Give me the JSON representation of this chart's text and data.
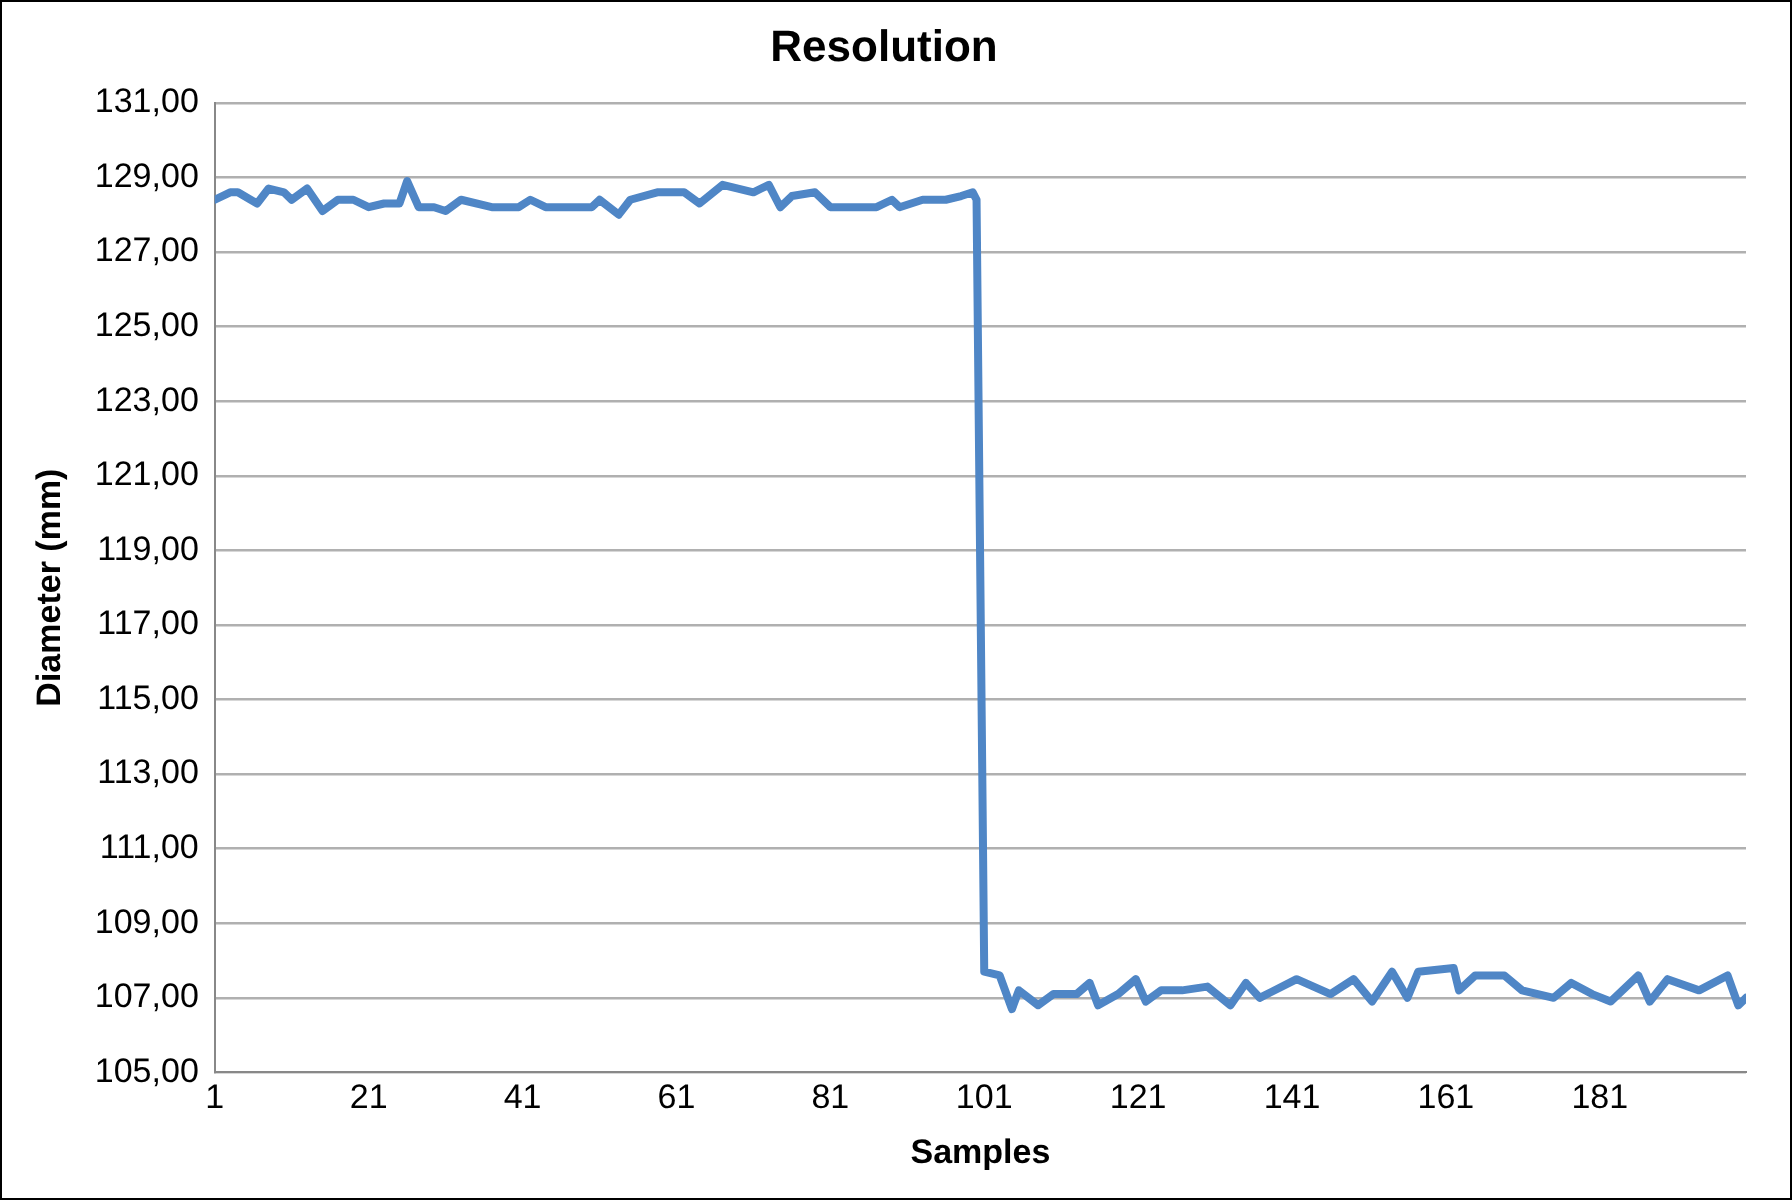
{
  "chart_data": {
    "type": "line",
    "title": "Resolution",
    "xlabel": "Samples",
    "ylabel": "Diameter (mm)",
    "xlim": [
      1,
      200
    ],
    "xticks": [
      1,
      21,
      41,
      61,
      81,
      101,
      121,
      141,
      161,
      181
    ],
    "ylim": [
      105,
      131
    ],
    "yticks": [
      {
        "value": 105,
        "label": "105,00"
      },
      {
        "value": 107,
        "label": "107,00"
      },
      {
        "value": 109,
        "label": "109,00"
      },
      {
        "value": 111,
        "label": "111,00"
      },
      {
        "value": 113,
        "label": "113,00"
      },
      {
        "value": 115,
        "label": "115,00"
      },
      {
        "value": 117,
        "label": "117,00"
      },
      {
        "value": 119,
        "label": "119,00"
      },
      {
        "value": 121,
        "label": "121,00"
      },
      {
        "value": 123,
        "label": "123,00"
      },
      {
        "value": 125,
        "label": "125,00"
      },
      {
        "value": 127,
        "label": "127,00"
      },
      {
        "value": 129,
        "label": "129,00"
      },
      {
        "value": 131,
        "label": "131,00"
      }
    ],
    "grid": "y",
    "legend": false,
    "marker": "none",
    "line_style": "solid",
    "series": [
      {
        "color": "#4f86c6",
        "x": [
          1,
          3,
          4,
          6.5,
          8,
          10,
          11,
          13,
          15,
          17,
          19,
          21,
          23,
          25,
          26,
          27.5,
          29.5,
          31,
          33,
          37,
          40.5,
          42,
          44,
          50,
          51,
          53.5,
          55,
          58.5,
          62,
          64,
          67,
          71,
          73,
          74.5,
          76,
          79,
          81,
          84,
          87,
          89,
          90,
          93,
          96,
          98,
          99.5,
          100,
          101,
          103,
          104.6,
          105.5,
          108,
          110,
          113,
          114.7,
          115.8,
          118.4,
          120.7,
          122,
          124,
          126.7,
          130,
          133,
          135,
          136.8,
          141.6,
          146,
          149,
          151.4,
          154,
          156,
          157.4,
          162,
          162.7,
          164.8,
          168.6,
          170.9,
          175,
          177.3,
          180,
          182.4,
          186,
          187.5,
          189.8,
          193.9,
          197.6,
          199,
          200
        ],
        "values": [
          128.4,
          128.6,
          128.6,
          128.3,
          128.7,
          128.6,
          128.4,
          128.7,
          128.1,
          128.4,
          128.4,
          128.2,
          128.3,
          128.3,
          128.9,
          128.2,
          128.2,
          128.1,
          128.4,
          128.2,
          128.2,
          128.4,
          128.2,
          128.2,
          128.4,
          128.0,
          128.4,
          128.6,
          128.6,
          128.3,
          128.8,
          128.6,
          128.8,
          128.2,
          128.5,
          128.6,
          128.2,
          128.2,
          128.2,
          128.4,
          128.2,
          128.4,
          128.4,
          128.5,
          128.6,
          128.4,
          107.7,
          107.6,
          106.7,
          107.2,
          106.8,
          107.1,
          107.1,
          107.4,
          106.8,
          107.1,
          107.5,
          106.9,
          107.2,
          107.2,
          107.3,
          106.8,
          107.4,
          107.0,
          107.5,
          107.1,
          107.5,
          106.9,
          107.7,
          107.0,
          107.7,
          107.8,
          107.2,
          107.6,
          107.6,
          107.2,
          107.0,
          107.4,
          107.1,
          106.9,
          107.6,
          106.9,
          107.5,
          107.2,
          107.6,
          106.8,
          107.0
        ]
      }
    ]
  }
}
